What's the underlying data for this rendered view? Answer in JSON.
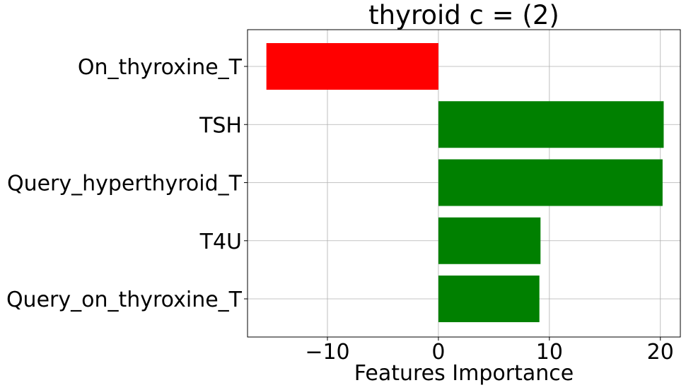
{
  "chart_data": {
    "type": "bar",
    "orientation": "horizontal",
    "title": "thyroid c = (2)",
    "xlabel": "Features Importance",
    "ylabel": "",
    "categories": [
      "On_thyroxine_T",
      "TSH",
      "Query_hyperthyroid_T",
      "T4U",
      "Query_on_thyroxine_T"
    ],
    "values": [
      -15.5,
      20.3,
      20.2,
      9.2,
      9.1
    ],
    "bar_colors": [
      "#ff0000",
      "#008000",
      "#008000",
      "#008000",
      "#008000"
    ],
    "xlim": [
      -17.2,
      21.8
    ],
    "xticks": [
      -10,
      0,
      10,
      20
    ],
    "xtick_labels": [
      "−10",
      "0",
      "10",
      "20"
    ],
    "grid": true,
    "legend": "none"
  }
}
